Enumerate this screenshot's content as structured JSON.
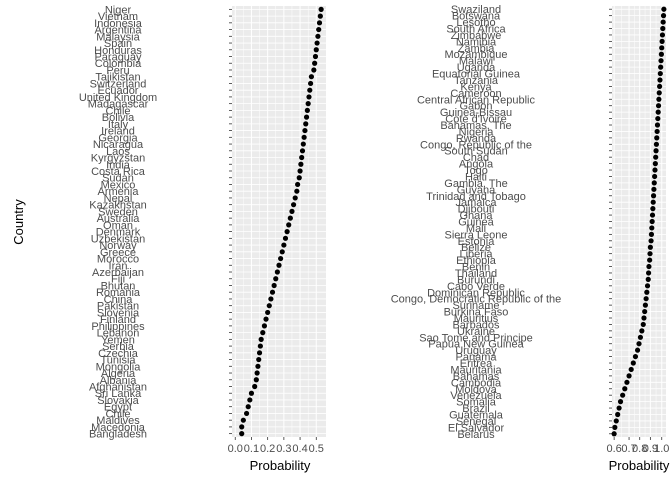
{
  "chart_data": [
    {
      "type": "scatter",
      "ylabel": "Country",
      "xlabel": "Probability",
      "xlim": [
        -0.02,
        0.56
      ],
      "x_ticks": [
        0.0,
        0.1,
        0.2,
        0.3,
        0.4,
        0.5
      ],
      "x_tick_labels": [
        "0.0",
        "0.1",
        "0.2",
        "0.3",
        "0.4",
        "0.5"
      ],
      "grid": true,
      "point_color": "#000000",
      "panel_background": "#ebebeb",
      "categories": [
        "Niger",
        "Vietnam",
        "Indonesia",
        "Argentina",
        "Malaysia",
        "Spain",
        "Honduras",
        "Paraguay",
        "Colombia",
        "Peru",
        "Tajikistan",
        "Switzerland",
        "Ecuador",
        "United Kingdom",
        "Madagascar",
        "Chile",
        "Bolivia",
        "Italy",
        "Ireland",
        "Georgia",
        "Nicaragua",
        "Laos",
        "Kyrgyzstan",
        "India",
        "Costa Rica",
        "Sudan",
        "Mexico",
        "Armenia",
        "Nepal",
        "Kazakhstan",
        "Sweden",
        "Australia",
        "Oman",
        "Denmark",
        "Uzbekistan",
        "Norway",
        "Greece",
        "Morocco",
        "Iran",
        "Azerbaijan",
        "Fiji",
        "Bhutan",
        "Romania",
        "China",
        "Pakistan",
        "Slovenia",
        "Finland",
        "Philippines",
        "Lebanon",
        "Yemen",
        "Serbia",
        "Czechia",
        "Tunisia",
        "Mongolia",
        "Algeria",
        "Albania",
        "Afghanistan",
        "Sri Lanka",
        "Slovakia",
        "Egypt",
        "Chile",
        "Maldives",
        "Macedonia",
        "Bangladesh"
      ],
      "values": [
        0.53,
        0.525,
        0.52,
        0.515,
        0.51,
        0.505,
        0.5,
        0.495,
        0.49,
        0.485,
        0.47,
        0.465,
        0.46,
        0.455,
        0.45,
        0.445,
        0.44,
        0.435,
        0.43,
        0.425,
        0.42,
        0.415,
        0.41,
        0.405,
        0.4,
        0.395,
        0.385,
        0.38,
        0.37,
        0.36,
        0.35,
        0.34,
        0.33,
        0.32,
        0.31,
        0.3,
        0.29,
        0.28,
        0.27,
        0.26,
        0.25,
        0.24,
        0.23,
        0.22,
        0.21,
        0.2,
        0.19,
        0.18,
        0.17,
        0.16,
        0.155,
        0.15,
        0.145,
        0.14,
        0.135,
        0.13,
        0.12,
        0.1,
        0.09,
        0.08,
        0.07,
        0.05,
        0.04,
        0.04
      ]
    },
    {
      "type": "scatter",
      "xlabel": "Probability",
      "xlim": [
        0.0,
        0.76
      ],
      "x_ticks": [
        0.03,
        0.24,
        0.39,
        0.54,
        0.7
      ],
      "x_tick_labels": [
        "0.6",
        "0.7",
        "0.8",
        "0.9",
        "1.0"
      ],
      "grid": true,
      "point_color": "#000000",
      "panel_background": "#ebebeb",
      "categories": [
        "Swaziland",
        "Botswana",
        "Lesotho",
        "South Africa",
        "Zimbabwe",
        "Namibia",
        "Zambia",
        "Mozambique",
        "Malawi",
        "Uganda",
        "Equatorial Guinea",
        "Tanzania",
        "Kenya",
        "Cameroon",
        "Central African Republic",
        "Gabon",
        "Guinea-Bissau",
        "Cote d'Ivoire",
        "Bahamas, The",
        "Nigeria",
        "Rwanda",
        "Congo, Republic of the",
        "South Sudan",
        "Chad",
        "Angola",
        "Togo",
        "Haiti",
        "Gambia, The",
        "Guyana",
        "Trinidad and Tobago",
        "Jamaica",
        "Djibouti",
        "Ghana",
        "Guinea",
        "Mali",
        "Sierra Leone",
        "Estonia",
        "Belize",
        "Liberia",
        "Ethiopia",
        "Benin",
        "Thailand",
        "Burundi",
        "Cabo Verde",
        "Dominican Republic",
        "Congo, Democratic Republic of the",
        "Suriname",
        "Burkina Faso",
        "Mauritius",
        "Barbados",
        "Ukraine",
        "Sao Tome and Principe",
        "Papua New Guinea",
        "Uruguay",
        "Panama",
        "Eritrea",
        "Mauritania",
        "Bahamas",
        "Cambodia",
        "Moldova",
        "Venezuela",
        "Somalia",
        "Brazil",
        "Guatemala",
        "Senegal",
        "El Salvador",
        "Belarus"
      ],
      "values": [
        0.73,
        0.725,
        0.72,
        0.715,
        0.71,
        0.705,
        0.7,
        0.695,
        0.69,
        0.685,
        0.68,
        0.675,
        0.67,
        0.665,
        0.66,
        0.655,
        0.65,
        0.645,
        0.64,
        0.635,
        0.63,
        0.625,
        0.62,
        0.615,
        0.61,
        0.605,
        0.6,
        0.595,
        0.59,
        0.585,
        0.58,
        0.575,
        0.57,
        0.565,
        0.56,
        0.555,
        0.55,
        0.54,
        0.535,
        0.53,
        0.52,
        0.515,
        0.51,
        0.5,
        0.49,
        0.48,
        0.47,
        0.46,
        0.45,
        0.44,
        0.42,
        0.4,
        0.38,
        0.36,
        0.33,
        0.3,
        0.27,
        0.24,
        0.21,
        0.18,
        0.15,
        0.12,
        0.1,
        0.08,
        0.06,
        0.04,
        0.03
      ]
    }
  ]
}
